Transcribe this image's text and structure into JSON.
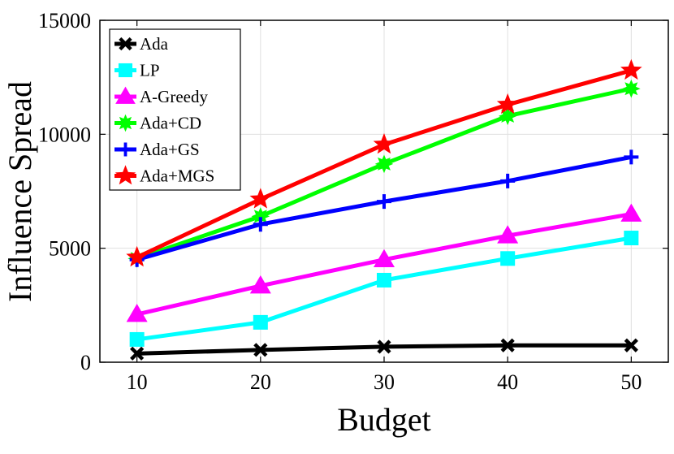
{
  "chart_data": {
    "type": "line",
    "title": "",
    "xlabel": "Budget",
    "ylabel": "Influence Spread",
    "x": [
      10,
      20,
      30,
      40,
      50
    ],
    "xlim": [
      7,
      53
    ],
    "ylim": [
      0,
      15000
    ],
    "xticks": [
      10,
      20,
      30,
      40,
      50
    ],
    "yticks": [
      0,
      5000,
      10000,
      15000
    ],
    "xtick_labels": [
      "10",
      "20",
      "30",
      "40",
      "50"
    ],
    "ytick_labels": [
      "0",
      "5000",
      "10000",
      "15000"
    ],
    "grid": true,
    "legend_position": "top-left",
    "series": [
      {
        "name": "Ada",
        "color": "#000000",
        "marker": "x",
        "values": [
          380,
          540,
          680,
          740,
          740
        ]
      },
      {
        "name": "LP",
        "color": "#00ffff",
        "marker": "square",
        "values": [
          1000,
          1750,
          3600,
          4550,
          5450
        ]
      },
      {
        "name": "A-Greedy",
        "color": "#ff00ff",
        "marker": "triangle",
        "values": [
          2100,
          3350,
          4500,
          5550,
          6500
        ]
      },
      {
        "name": "Ada+CD",
        "color": "#00ff00",
        "marker": "burst",
        "values": [
          4550,
          6400,
          8700,
          10800,
          12000
        ]
      },
      {
        "name": "Ada+GS",
        "color": "#0000ff",
        "marker": "plus",
        "values": [
          4500,
          6050,
          7050,
          7950,
          9000
        ]
      },
      {
        "name": "Ada+MGS",
        "color": "#ff0000",
        "marker": "star",
        "values": [
          4600,
          7150,
          9550,
          11300,
          12800
        ]
      }
    ]
  }
}
